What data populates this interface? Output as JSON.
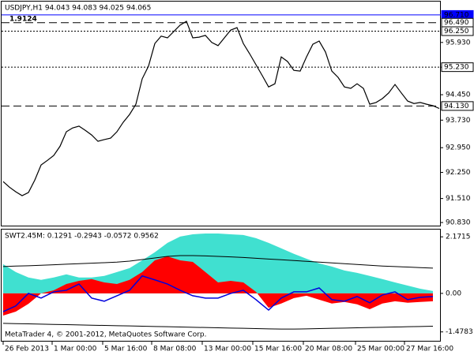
{
  "chart_data": [
    {
      "type": "line",
      "title": "USDJPY,H1  94.043 94.083 94.025 94.065",
      "annotation": "1.9124",
      "annotation_color": "#c00000",
      "color": "#000000",
      "values": [
        91.99,
        91.83,
        91.7,
        91.59,
        91.68,
        92.03,
        92.46,
        92.59,
        92.73,
        92.99,
        93.4,
        93.51,
        93.56,
        93.44,
        93.31,
        93.13,
        93.18,
        93.22,
        93.4,
        93.67,
        93.89,
        94.18,
        94.9,
        95.26,
        95.9,
        96.11,
        96.06,
        96.24,
        96.42,
        96.53,
        96.06,
        96.08,
        96.13,
        95.93,
        95.84,
        96.06,
        96.28,
        96.35,
        95.9,
        95.61,
        95.3,
        94.99,
        94.67,
        94.76,
        95.52,
        95.39,
        95.14,
        95.12,
        95.52,
        95.88,
        95.97,
        95.66,
        95.12,
        94.94,
        94.67,
        94.63,
        94.76,
        94.63,
        94.18,
        94.23,
        94.34,
        94.5,
        94.74,
        94.5,
        94.27,
        94.2,
        94.23,
        94.18,
        94.14,
        94.06
      ],
      "xlim": [
        -0.5,
        69.25
      ],
      "xticks": [
        {
          "value": 0,
          "label": "26 Feb 2013"
        },
        {
          "value": 7.75,
          "label": "1 Mar 00:00"
        },
        {
          "value": 15.75,
          "label": "5 Mar 16:00"
        },
        {
          "value": 23.5,
          "label": "8 Mar 08:00"
        },
        {
          "value": 31.5,
          "label": "13 Mar 00:00"
        },
        {
          "value": 39.5,
          "label": "15 Mar 16:00"
        },
        {
          "value": 47.5,
          "label": "20 Mar 08:00"
        },
        {
          "value": 55.75,
          "label": "25 Mar 00:00"
        },
        {
          "value": 63.5,
          "label": "27 Mar 16:00"
        }
      ],
      "ylim": [
        90.72,
        97.11
      ],
      "yticks": [
        {
          "value": 95.93,
          "label": "95.930"
        },
        {
          "value": 95.23,
          "label": "95.230"
        },
        {
          "value": 94.45,
          "label": "94.450"
        },
        {
          "value": 93.73,
          "label": "93.730"
        },
        {
          "value": 92.95,
          "label": "92.950"
        },
        {
          "value": 92.25,
          "label": "92.250"
        },
        {
          "value": 91.51,
          "label": "91.510"
        },
        {
          "value": 90.83,
          "label": "90.830"
        }
      ],
      "hlines": [
        {
          "value": 96.71,
          "label": "96.710",
          "style": "solid",
          "color": "#0000ff"
        },
        {
          "value": 96.49,
          "label": "96.490",
          "style": "dashed",
          "color": "#000000"
        },
        {
          "value": 96.25,
          "label": "96.250",
          "style": "dotted",
          "color": "#000000"
        },
        {
          "value": 95.23,
          "label": "95.230",
          "style": "dotted",
          "color": "#000000"
        },
        {
          "value": 94.13,
          "label": "94.130",
          "style": "dashed",
          "color": "#000000"
        }
      ]
    },
    {
      "type": "area",
      "title": "SWT2.45M:  0.1291 -0.2943 -0.0572 0.9562",
      "footer": "MetaTrader 4, © 2001-2012, MetaQuotes Software Corp.",
      "x": [
        0,
        2,
        4,
        6,
        8,
        10,
        12,
        14,
        16,
        18,
        20,
        22,
        24,
        26,
        28,
        30,
        32,
        34,
        36,
        38,
        40,
        42,
        44,
        46,
        48,
        50,
        52,
        54,
        56,
        58,
        60,
        62,
        64,
        66,
        68
      ],
      "series": [
        {
          "color": "#40e0d0",
          "fill": true,
          "values": [
            1.12,
            0.82,
            0.61,
            0.52,
            0.61,
            0.73,
            0.61,
            0.61,
            0.67,
            0.82,
            0.97,
            1.27,
            1.58,
            1.94,
            2.18,
            2.27,
            2.3,
            2.3,
            2.27,
            2.24,
            2.12,
            1.94,
            1.73,
            1.52,
            1.33,
            1.15,
            1.03,
            0.88,
            0.79,
            0.67,
            0.55,
            0.42,
            0.3,
            0.18,
            0.09
          ]
        },
        {
          "color": "#ff0000",
          "fill": true,
          "values": [
            -0.85,
            -0.7,
            -0.4,
            0,
            0.12,
            0.36,
            0.48,
            0.55,
            0.42,
            0.36,
            0.52,
            0.82,
            1.27,
            1.42,
            1.27,
            1.21,
            0.82,
            0.42,
            0.48,
            0.42,
            0.06,
            -0.55,
            -0.39,
            -0.18,
            -0.09,
            -0.24,
            -0.39,
            -0.33,
            -0.42,
            -0.61,
            -0.39,
            -0.3,
            -0.36,
            -0.33,
            -0.3
          ]
        },
        {
          "color": "#000000",
          "fill": false,
          "values": [
            1.03,
            1.05,
            1.06,
            1.08,
            1.1,
            1.12,
            1.14,
            1.16,
            1.18,
            1.2,
            1.24,
            1.3,
            1.36,
            1.42,
            1.45,
            1.45,
            1.44,
            1.42,
            1.4,
            1.38,
            1.35,
            1.32,
            1.29,
            1.26,
            1.23,
            1.2,
            1.17,
            1.14,
            1.11,
            1.08,
            1.05,
            1.03,
            1.01,
            0.99,
            0.97
          ]
        },
        {
          "color": "#000000",
          "fill": false,
          "values": [
            -1.15,
            -1.16,
            -1.17,
            -1.18,
            -1.19,
            -1.2,
            -1.21,
            -1.22,
            -1.23,
            -1.24,
            -1.25,
            -1.26,
            -1.27,
            -1.28,
            -1.29,
            -1.3,
            -1.31,
            -1.32,
            -1.33,
            -1.34,
            -1.35,
            -1.36,
            -1.37,
            -1.37,
            -1.36,
            -1.35,
            -1.34,
            -1.33,
            -1.32,
            -1.31,
            -1.3,
            -1.29,
            -1.28,
            -1.27,
            -1.26
          ]
        },
        {
          "color": "#0000dd",
          "fill": false,
          "values": [
            -0.7,
            -0.48,
            0,
            -0.18,
            0.06,
            0.12,
            0.36,
            -0.18,
            -0.3,
            -0.09,
            0.12,
            0.67,
            0.52,
            0.36,
            0.12,
            -0.09,
            -0.18,
            -0.18,
            0,
            0.12,
            -0.24,
            -0.64,
            -0.18,
            0.06,
            0.06,
            0.21,
            -0.24,
            -0.3,
            -0.12,
            -0.36,
            -0.06,
            0.06,
            -0.24,
            -0.15,
            -0.12
          ]
        }
      ],
      "xlim": [
        -0.5,
        69.25
      ],
      "ylim": [
        -1.85,
        2.45
      ],
      "yticks": [
        2.1715,
        {
          "value": 0,
          "label": "0.00"
        },
        -1.4783
      ]
    }
  ]
}
